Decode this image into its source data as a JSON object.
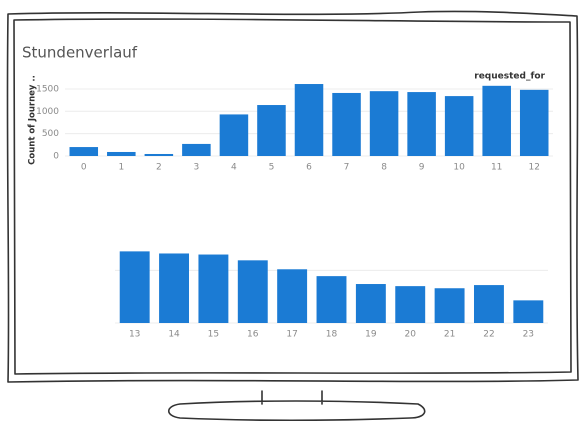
{
  "chart_data": [
    {
      "type": "bar",
      "title": "Stundenverlauf",
      "column_header": "requested_for",
      "y_label": "Count of Journey ..",
      "categories": [
        "0",
        "1",
        "2",
        "3",
        "4",
        "5",
        "6",
        "7",
        "8",
        "9",
        "10",
        "11",
        "12"
      ],
      "values": [
        200,
        90,
        45,
        270,
        930,
        1140,
        1610,
        1410,
        1450,
        1430,
        1340,
        1570,
        1480
      ],
      "color": "#1b7bd4",
      "ylim": [
        0,
        1700
      ],
      "yticks": [
        0,
        500,
        1000,
        1500
      ],
      "grid": true
    },
    {
      "type": "bar",
      "categories": [
        "13",
        "14",
        "15",
        "16",
        "17",
        "18",
        "19",
        "20",
        "21",
        "22",
        "23"
      ],
      "values": [
        1360,
        1320,
        1300,
        1190,
        1020,
        890,
        740,
        700,
        660,
        720,
        430
      ],
      "color": "#1b7bd4",
      "ylim": [
        0,
        1500
      ],
      "yticks": [
        0,
        1000
      ],
      "grid": true
    }
  ]
}
